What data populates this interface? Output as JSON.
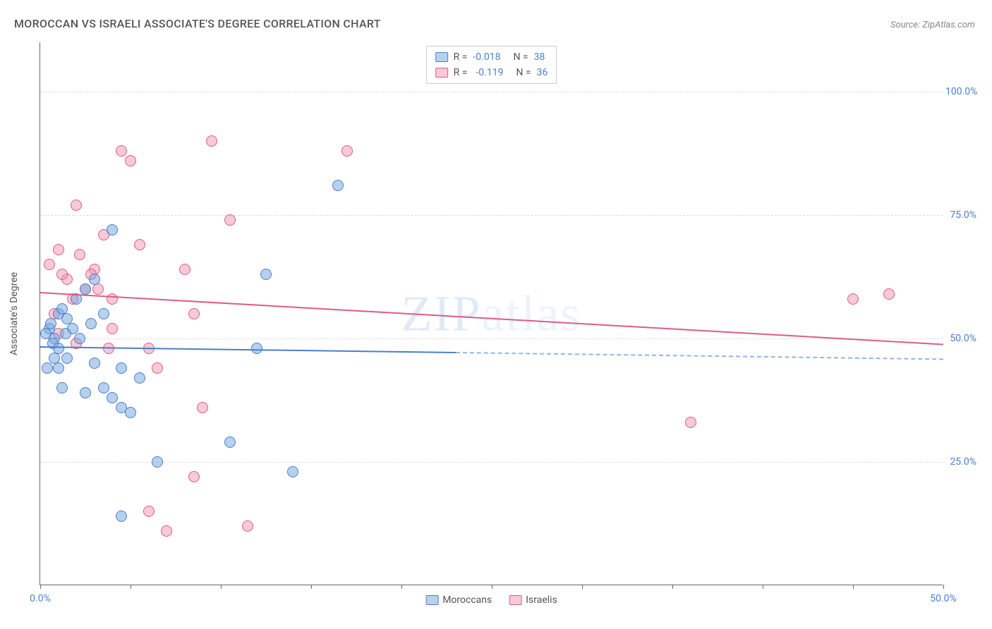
{
  "title": "MOROCCAN VS ISRAELI ASSOCIATE'S DEGREE CORRELATION CHART",
  "source": "Source: ZipAtlas.com",
  "watermark": "ZIPatlas",
  "ylabel": "Associate's Degree",
  "axes": {
    "xlim": [
      0,
      50
    ],
    "ylim": [
      0,
      110
    ],
    "yticks": [
      25,
      50,
      75,
      100
    ],
    "ytick_labels": [
      "25.0%",
      "50.0%",
      "75.0%",
      "100.0%"
    ],
    "xticks": [
      0,
      5,
      10,
      15,
      20,
      25,
      30,
      35,
      40,
      45,
      50
    ],
    "xtick_labels_shown": {
      "0": "0.0%",
      "50": "50.0%"
    },
    "grid_color": "#dddddd",
    "axis_color": "#666666",
    "tick_label_color": "#4a7fc9"
  },
  "series": {
    "moroccans": {
      "label": "Moroccans",
      "color_fill": "rgba(122,169,224,0.55)",
      "color_stroke": "#4a7fc9",
      "r": "-0.018",
      "n": "38",
      "trend": {
        "x1": 0,
        "y1": 48.5,
        "x2_solid": 23,
        "x2_dash": 50,
        "y2": 46.0
      },
      "points": [
        [
          0.5,
          52
        ],
        [
          0.6,
          53
        ],
        [
          0.8,
          50
        ],
        [
          0.3,
          51
        ],
        [
          1.0,
          55
        ],
        [
          1.2,
          56
        ],
        [
          1.5,
          54
        ],
        [
          0.7,
          49
        ],
        [
          1.8,
          52
        ],
        [
          2.0,
          58
        ],
        [
          2.2,
          50
        ],
        [
          2.5,
          60
        ],
        [
          3.0,
          62
        ],
        [
          3.5,
          55
        ],
        [
          4.0,
          72
        ],
        [
          1.0,
          44
        ],
        [
          1.5,
          46
        ],
        [
          3.0,
          45
        ],
        [
          4.0,
          38
        ],
        [
          4.5,
          36
        ],
        [
          5.0,
          35
        ],
        [
          3.5,
          40
        ],
        [
          6.5,
          25
        ],
        [
          10.5,
          29
        ],
        [
          12.5,
          63
        ],
        [
          12.0,
          48
        ],
        [
          16.5,
          81
        ],
        [
          4.5,
          14
        ],
        [
          14.0,
          23
        ],
        [
          5.5,
          42
        ],
        [
          4.5,
          44
        ],
        [
          2.5,
          39
        ],
        [
          1.2,
          40
        ],
        [
          0.4,
          44
        ],
        [
          1.0,
          48
        ],
        [
          0.8,
          46
        ],
        [
          1.4,
          51
        ],
        [
          2.8,
          53
        ]
      ]
    },
    "israelis": {
      "label": "Israelis",
      "color_fill": "rgba(240,158,178,0.55)",
      "color_stroke": "#e05a88",
      "r": "-0.119",
      "n": "36",
      "trend": {
        "x1": 0,
        "y1": 59.5,
        "x2_solid": 50,
        "x2_dash": 50,
        "y2": 49.0
      },
      "points": [
        [
          0.5,
          65
        ],
        [
          1.0,
          68
        ],
        [
          1.5,
          62
        ],
        [
          2.0,
          77
        ],
        [
          2.5,
          60
        ],
        [
          3.0,
          64
        ],
        [
          3.5,
          71
        ],
        [
          4.0,
          58
        ],
        [
          4.5,
          88
        ],
        [
          5.0,
          86
        ],
        [
          5.5,
          69
        ],
        [
          8.0,
          64
        ],
        [
          8.5,
          55
        ],
        [
          9.5,
          90
        ],
        [
          10.5,
          74
        ],
        [
          17.0,
          88
        ],
        [
          1.0,
          51
        ],
        [
          1.8,
          58
        ],
        [
          2.8,
          63
        ],
        [
          4.0,
          52
        ],
        [
          6.0,
          48
        ],
        [
          9.0,
          36
        ],
        [
          2.0,
          49
        ],
        [
          0.8,
          55
        ],
        [
          1.2,
          63
        ],
        [
          2.2,
          67
        ],
        [
          3.2,
          60
        ],
        [
          3.8,
          48
        ],
        [
          8.5,
          22
        ],
        [
          11.5,
          12
        ],
        [
          6.0,
          15
        ],
        [
          7.0,
          11
        ],
        [
          36.0,
          33
        ],
        [
          45.0,
          58
        ],
        [
          47.0,
          59
        ],
        [
          6.5,
          44
        ]
      ]
    }
  },
  "legend_top": [
    {
      "swatch": "blue",
      "r": "-0.018",
      "n": "38"
    },
    {
      "swatch": "pink",
      "r": "-0.119",
      "n": "36"
    }
  ],
  "legend_bottom": [
    {
      "swatch": "blue",
      "label": "Moroccans"
    },
    {
      "swatch": "pink",
      "label": "Israelis"
    }
  ]
}
